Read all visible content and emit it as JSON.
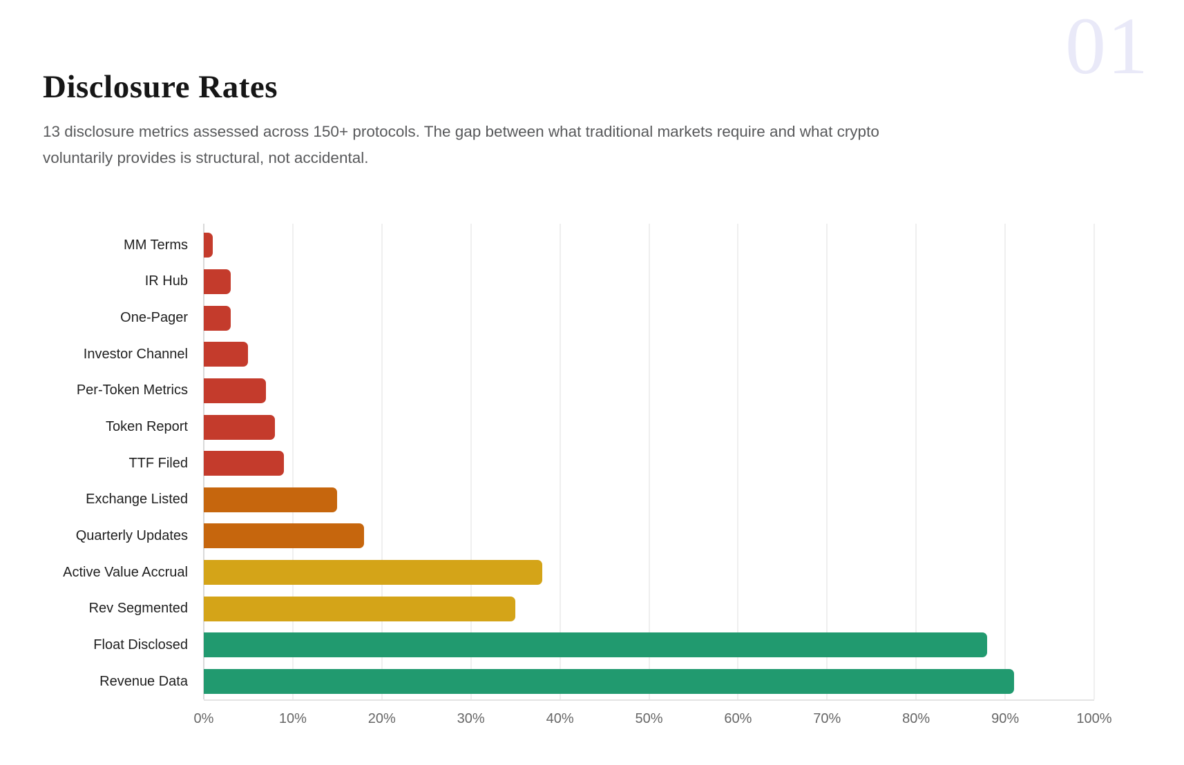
{
  "page": {
    "section_number": "01",
    "title": "Disclosure Rates",
    "subtitle": "13 disclosure metrics assessed across 150+ protocols. The gap between what traditional markets require and what crypto\nvoluntarily provides is structural, not accidental."
  },
  "colors": {
    "red": "#c43b2c",
    "orange": "#c6660d",
    "gold": "#d4a418",
    "teal": "#219a6f",
    "grid": "#efefef",
    "zero_axis": "#d9d9d9",
    "baseline": "#e3e3e3",
    "section_number": "#e9e9f8"
  },
  "chart_data": {
    "type": "bar",
    "orientation": "horizontal",
    "title": "Disclosure Rates",
    "xlabel": "",
    "ylabel": "",
    "categories": [
      "MM Terms",
      "IR Hub",
      "One-Pager",
      "Investor Channel",
      "Per-Token Metrics",
      "Token Report",
      "TTF Filed",
      "Exchange Listed",
      "Quarterly Updates",
      "Active Value Accrual",
      "Rev Segmented",
      "Float Disclosed",
      "Revenue Data"
    ],
    "values": [
      1,
      3,
      3,
      5,
      7,
      8,
      9,
      15,
      18,
      38,
      35,
      88,
      91
    ],
    "unit": "%",
    "bar_color_keys": [
      "red",
      "red",
      "red",
      "red",
      "red",
      "red",
      "red",
      "orange",
      "orange",
      "gold",
      "gold",
      "teal",
      "teal"
    ],
    "xlim": [
      0,
      100
    ],
    "x_tick_values": [
      0,
      10,
      20,
      30,
      40,
      50,
      60,
      70,
      80,
      90,
      100
    ],
    "x_tick_labels": [
      "0%",
      "10%",
      "20%",
      "30%",
      "40%",
      "50%",
      "60%",
      "70%",
      "80%",
      "90%",
      "100%"
    ],
    "grid": "vertical",
    "legend": "none"
  }
}
